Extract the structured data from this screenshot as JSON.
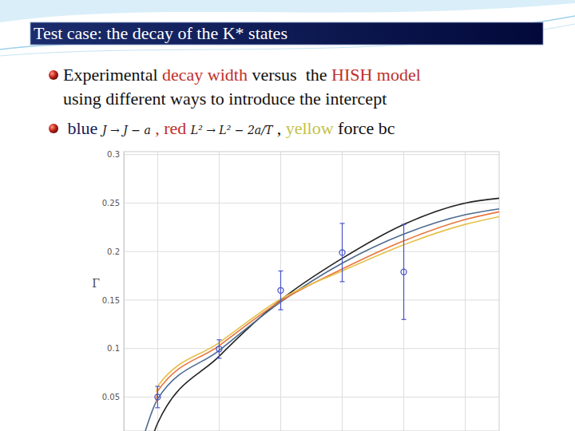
{
  "title": "Test case: the decay of the K* states",
  "bullets": [
    {
      "lines": [
        [
          {
            "text": "Experimental ",
            "color": "#111111"
          },
          {
            "text": "decay width",
            "color": "#c0302a"
          },
          {
            "text": " versus  the ",
            "color": "#111111"
          },
          {
            "text": "HISH model",
            "color": "#c0302a"
          }
        ],
        [
          {
            "text": "using different ways to introduce the intercept",
            "color": "#111111"
          }
        ]
      ]
    },
    {
      "lines": [
        [
          {
            "text": " blue ",
            "color": "#1a1a5a"
          },
          {
            "text": "J → J − a",
            "color": "#111111",
            "marker": "formula"
          },
          {
            "text": " , red ",
            "color": "#c0302a"
          },
          {
            "text": "L² → L² − 2a/T",
            "color": "#111111",
            "marker": "formula"
          },
          {
            "text": " , ",
            "color": "#111111"
          },
          {
            "text": "yellow",
            "color": "#c4c24a"
          },
          {
            "text": " force bc",
            "color": "#111111"
          }
        ]
      ]
    }
  ],
  "chart_data": {
    "type": "line",
    "y_label": "Γ",
    "xlim": [
      0.45,
      6.55
    ],
    "xticks": [
      1,
      2,
      3,
      4,
      5,
      6
    ],
    "ylim": [
      0.015,
      0.303
    ],
    "yticks": [
      0.05,
      0.1,
      0.15,
      0.2,
      0.25,
      0.3
    ],
    "grid": true,
    "tick_labels": "y",
    "series": [
      {
        "type": "line",
        "color": "#222222",
        "x": [
          0.95,
          1,
          2,
          3,
          4,
          5,
          6,
          6.55
        ],
        "values": [
          0.015,
          0.023,
          0.092,
          0.15,
          0.193,
          0.228,
          0.25,
          0.255
        ]
      },
      {
        "type": "line",
        "color": "#4d6a8f",
        "x": [
          0.8,
          1,
          2,
          3,
          4,
          5,
          6,
          6.55
        ],
        "values": [
          0.015,
          0.048,
          0.098,
          0.148,
          0.188,
          0.218,
          0.238,
          0.244
        ]
      },
      {
        "type": "line",
        "color": "#e8743b",
        "x": [
          0.98,
          1,
          2,
          3,
          4,
          5,
          6,
          6.55
        ],
        "values": [
          0.045,
          0.056,
          0.103,
          0.149,
          0.182,
          0.211,
          0.233,
          0.241
        ]
      },
      {
        "type": "line",
        "color": "#e6c04a",
        "x": [
          0.98,
          1,
          2,
          3,
          4,
          5,
          6,
          6.55
        ],
        "values": [
          0.055,
          0.061,
          0.106,
          0.151,
          0.18,
          0.207,
          0.228,
          0.236
        ]
      },
      {
        "type": "scatter",
        "marker": "circle-open",
        "color": "#4b55c8",
        "x": [
          1,
          2,
          3,
          4,
          5
        ],
        "values": [
          0.05,
          0.0995,
          0.16,
          0.199,
          0.179
        ],
        "errors": [
          0.011,
          0.0095,
          0.02,
          0.03,
          0.049
        ]
      }
    ]
  }
}
